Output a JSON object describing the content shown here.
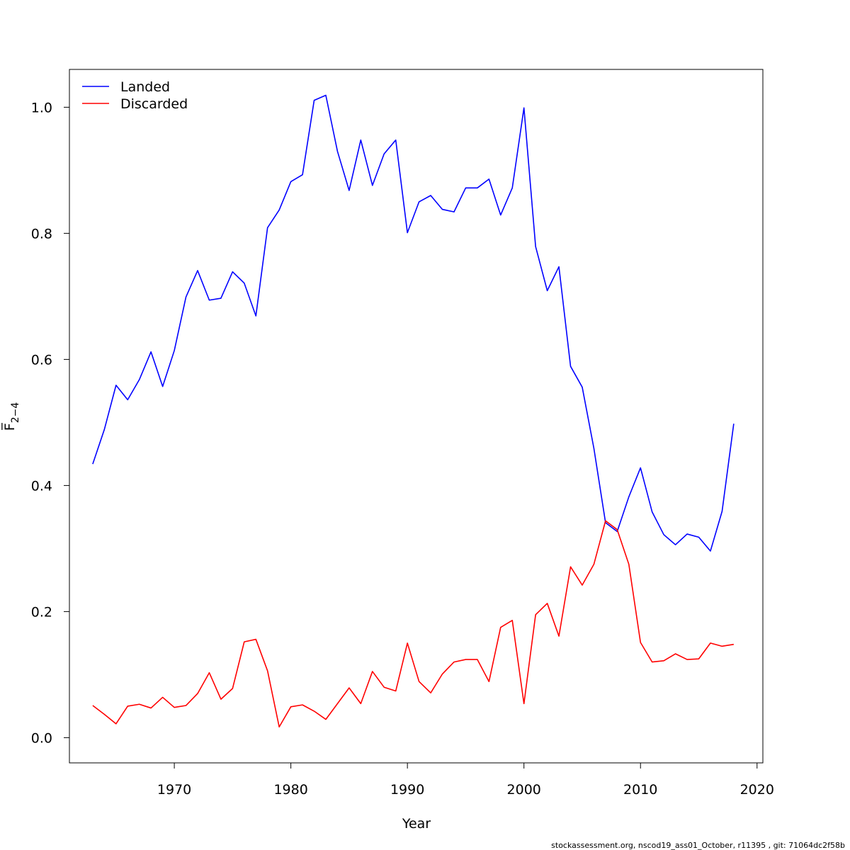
{
  "chart_data": {
    "type": "line",
    "title": "",
    "xlabel": "Year",
    "ylabel": "F̅",
    "ylabel_subscript": "2−4",
    "xlim": [
      1961,
      2020.5
    ],
    "ylim": [
      -0.04,
      1.06
    ],
    "x_ticks": [
      1970,
      1980,
      1990,
      2000,
      2010,
      2020
    ],
    "y_ticks": [
      0.0,
      0.2,
      0.4,
      0.6,
      0.8,
      1.0
    ],
    "x_tick_labels": [
      "1970",
      "1980",
      "1990",
      "2000",
      "2010",
      "2020"
    ],
    "y_tick_labels": [
      "0.0",
      "0.2",
      "0.4",
      "0.6",
      "0.8",
      "1.0"
    ],
    "grid": false,
    "legend_position": "top-left",
    "x": [
      1963,
      1964,
      1965,
      1966,
      1967,
      1968,
      1969,
      1970,
      1971,
      1972,
      1973,
      1974,
      1975,
      1976,
      1977,
      1978,
      1979,
      1980,
      1981,
      1982,
      1983,
      1984,
      1985,
      1986,
      1987,
      1988,
      1989,
      1990,
      1991,
      1992,
      1993,
      1994,
      1995,
      1996,
      1997,
      1998,
      1999,
      2000,
      2001,
      2002,
      2003,
      2004,
      2005,
      2006,
      2007,
      2008,
      2009,
      2010,
      2011,
      2012,
      2013,
      2014,
      2015,
      2016,
      2017,
      2018
    ],
    "series": [
      {
        "name": "Landed",
        "color": "#0000ff",
        "values": [
          0.434,
          0.489,
          0.559,
          0.536,
          0.568,
          0.612,
          0.557,
          0.614,
          0.699,
          0.741,
          0.694,
          0.697,
          0.739,
          0.721,
          0.669,
          0.809,
          0.837,
          0.882,
          0.893,
          1.011,
          1.019,
          0.93,
          0.868,
          0.948,
          0.876,
          0.926,
          0.948,
          0.801,
          0.85,
          0.86,
          0.838,
          0.834,
          0.872,
          0.872,
          0.886,
          0.829,
          0.872,
          0.999,
          0.779,
          0.709,
          0.747,
          0.589,
          0.556,
          0.459,
          0.341,
          0.327,
          0.382,
          0.428,
          0.358,
          0.322,
          0.306,
          0.323,
          0.318,
          0.296,
          0.359,
          0.498
        ]
      },
      {
        "name": "Discarded",
        "color": "#ff0000",
        "values": [
          0.051,
          0.037,
          0.022,
          0.05,
          0.053,
          0.047,
          0.064,
          0.048,
          0.051,
          0.07,
          0.103,
          0.061,
          0.078,
          0.152,
          0.156,
          0.106,
          0.017,
          0.049,
          0.052,
          0.042,
          0.029,
          0.054,
          0.079,
          0.054,
          0.105,
          0.08,
          0.074,
          0.15,
          0.089,
          0.071,
          0.101,
          0.12,
          0.124,
          0.124,
          0.089,
          0.175,
          0.186,
          0.054,
          0.195,
          0.213,
          0.161,
          0.271,
          0.242,
          0.275,
          0.344,
          0.33,
          0.275,
          0.151,
          0.12,
          0.122,
          0.133,
          0.124,
          0.125,
          0.15,
          0.145,
          0.148
        ]
      }
    ]
  },
  "footer": "stockassessment.org, nscod19_ass01_October, r11395 , git: 71064dc2f58b"
}
